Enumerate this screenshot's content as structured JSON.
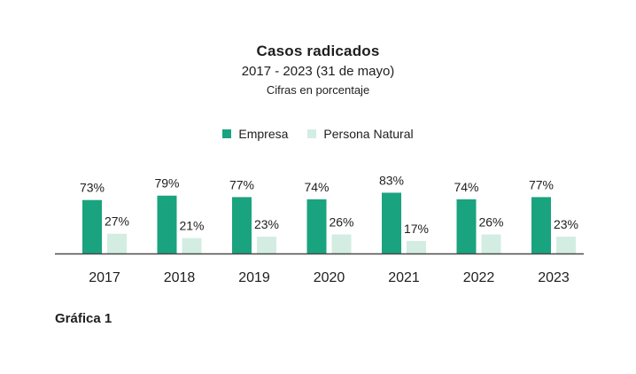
{
  "chart_data": {
    "type": "bar",
    "title": "Casos radicados",
    "subtitle": "2017 - 2023 (31 de mayo)",
    "note": "Cifras en porcentaje",
    "categories": [
      "2017",
      "2018",
      "2019",
      "2020",
      "2021",
      "2022",
      "2023"
    ],
    "series": [
      {
        "name": "Empresa",
        "color": "#1aa37f",
        "values": [
          73,
          79,
          77,
          74,
          83,
          74,
          77
        ],
        "labels": [
          "73%",
          "79%",
          "77%",
          "74%",
          "83%",
          "74%",
          "77%"
        ]
      },
      {
        "name": "Persona Natural",
        "color": "#d3ede3",
        "values": [
          27,
          21,
          23,
          26,
          17,
          26,
          23
        ],
        "labels": [
          "27%",
          "21%",
          "23%",
          "26%",
          "17%",
          "26%",
          "23%"
        ]
      }
    ],
    "ylim": [
      0,
      100
    ],
    "grid": false,
    "legend": "top-center",
    "axis_color": "#4a4a4a"
  },
  "caption": "Gráfica 1"
}
